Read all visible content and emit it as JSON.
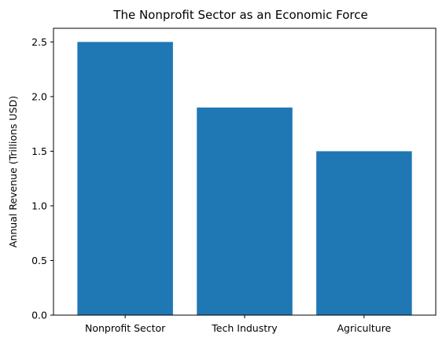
{
  "chart_data": {
    "type": "bar",
    "title": "The Nonprofit Sector as an Economic Force",
    "xlabel": "",
    "ylabel": "Annual Revenue (Trillions USD)",
    "categories": [
      "Nonprofit Sector",
      "Tech Industry",
      "Agriculture"
    ],
    "values": [
      2.5,
      1.9,
      1.5
    ],
    "ylim": [
      0,
      2.625
    ],
    "yticks": [
      0.0,
      0.5,
      1.0,
      1.5,
      2.0,
      2.5
    ],
    "ytick_labels": [
      "0.0",
      "0.5",
      "1.0",
      "1.5",
      "2.0",
      "2.5"
    ],
    "bar_color": "#1f77b4",
    "grid": false,
    "legend": "none"
  }
}
